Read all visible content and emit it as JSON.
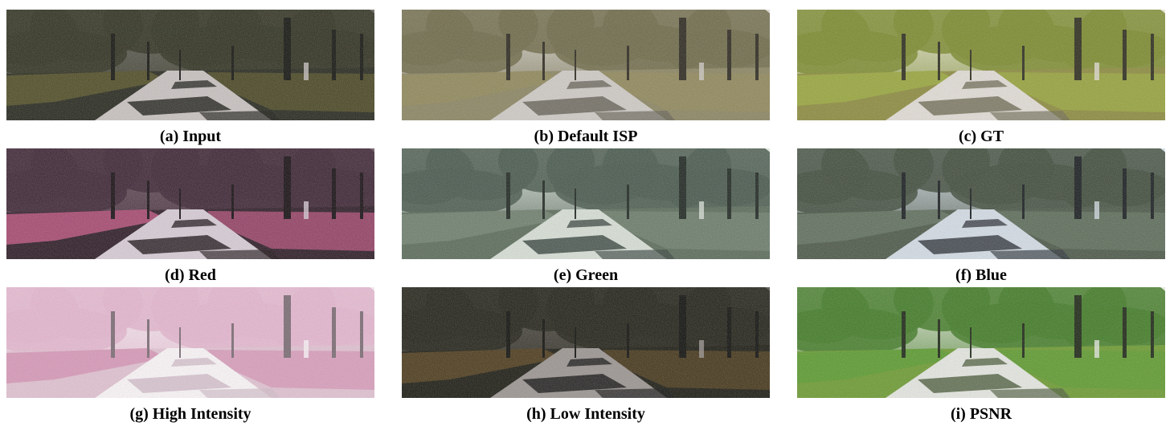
{
  "figure": {
    "panels": [
      {
        "caption": "(a) Input",
        "tone": "input",
        "colors": {
          "sky": "#6d6a63",
          "foliage": "#2c2e1c",
          "hedge": "#4d4a22",
          "road": "#c8c2c0",
          "shadow": "#1a1a14",
          "ground": "#23251a",
          "trunk": "#0f0f0b"
        }
      },
      {
        "caption": "(b) Default ISP",
        "tone": "default-isp",
        "colors": {
          "sky": "#e6e2dc",
          "foliage": "#6d6846",
          "hedge": "#8f8758",
          "road": "#cfcbc6",
          "shadow": "#625e52",
          "ground": "#8a8460",
          "trunk": "#2a261c"
        }
      },
      {
        "caption": "(c) GT",
        "tone": "ground-truth",
        "colors": {
          "sky": "#f4f1e2",
          "foliage": "#7a8a2a",
          "hedge": "#98a63a",
          "road": "#e2ddd6",
          "shadow": "#6d6a52",
          "ground": "#8c8a3c",
          "trunk": "#2b2a1a"
        }
      },
      {
        "caption": "(d) Red",
        "tone": "red",
        "colors": {
          "sky": "#6e5862",
          "foliage": "#3a2131",
          "hedge": "#a6466e",
          "road": "#d8ccd6",
          "shadow": "#1c1216",
          "ground": "#2a1822",
          "trunk": "#120a0e"
        }
      },
      {
        "caption": "(e) Green",
        "tone": "green",
        "colors": {
          "sky": "#e8f0e4",
          "foliage": "#46564a",
          "hedge": "#6d7e6c",
          "road": "#d8e0d6",
          "shadow": "#34403a",
          "ground": "#596a58",
          "trunk": "#1c241e"
        }
      },
      {
        "caption": "(f) Blue",
        "tone": "blue",
        "colors": {
          "sky": "#dfe9f2",
          "foliage": "#3e4a3a",
          "hedge": "#5e6e5c",
          "road": "#d4dde6",
          "shadow": "#2a3036",
          "ground": "#4a5646",
          "trunk": "#161a1c"
        }
      },
      {
        "caption": "(g) High Intensity",
        "tone": "high-intensity",
        "colors": {
          "sky": "#fbf4f8",
          "foliage": "#e6b6cf",
          "hedge": "#d898b8",
          "road": "#fdf8fa",
          "shadow": "#d2bcc8",
          "ground": "#e2c2d2",
          "trunk": "#7a6a72"
        }
      },
      {
        "caption": "(h) Low Intensity",
        "tone": "low-intensity",
        "colors": {
          "sky": "#5a554e",
          "foliage": "#1e1e14",
          "hedge": "#4a3818",
          "road": "#9a9490",
          "shadow": "#101010",
          "ground": "#18180f",
          "trunk": "#0a0a07"
        }
      },
      {
        "caption": "(i) PSNR",
        "tone": "psnr",
        "colors": {
          "sky": "#f2f4ea",
          "foliage": "#3f7a22",
          "hedge": "#5a9a2c",
          "road": "#e6e8e2",
          "shadow": "#4a5a3a",
          "ground": "#6b9a2e",
          "trunk": "#1a2412"
        }
      }
    ]
  }
}
